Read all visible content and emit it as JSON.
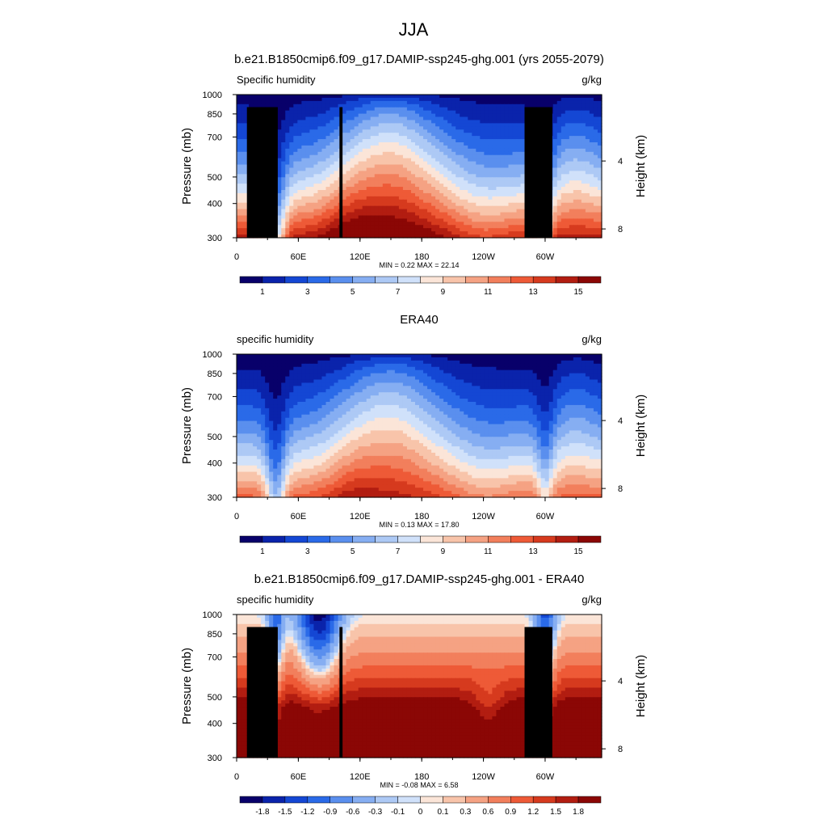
{
  "figure": {
    "title": "JJA"
  },
  "colors": {
    "abs_palette": [
      "#08006a",
      "#0a23ab",
      "#1447d4",
      "#2a6ae8",
      "#5a8fee",
      "#86aef2",
      "#adc9f5",
      "#d0e1fa",
      "#fbe5d8",
      "#f8c4aa",
      "#f5a283",
      "#f27f5c",
      "#ee5a37",
      "#d63a1e",
      "#b21d11",
      "#8b0705"
    ],
    "diff_palette": [
      "#08006a",
      "#0a23ab",
      "#1447d4",
      "#2a6ae8",
      "#5a8fee",
      "#86aef2",
      "#adc9f5",
      "#d0e1fa",
      "#fbe5d8",
      "#f8c4aa",
      "#f5a283",
      "#f27f5c",
      "#ee5a37",
      "#d63a1e",
      "#b21d11",
      "#8b0705"
    ],
    "topography": "#000000"
  },
  "chart_data": [
    {
      "type": "heatmap",
      "id": "model",
      "title": "b.e21.B1850cmip6.f09_g17.DAMIP-ssp245-ghg.001 (yrs 2055-2079)",
      "left_string": "Specific humidity",
      "right_string": "g/kg",
      "xlabel": "",
      "ylabel": "Pressure (mb)",
      "ylabel_right": "Height (km)",
      "x_ticklabels": [
        "0",
        "60E",
        "120E",
        "180",
        "120W",
        "60W"
      ],
      "x_tick_lon": [
        0,
        60,
        120,
        180,
        240,
        300
      ],
      "xlim": [
        0,
        355
      ],
      "y_ticklabels": [
        "300",
        "400",
        "500",
        "700",
        "850",
        "1000"
      ],
      "y_tick_values": [
        300,
        400,
        500,
        700,
        850,
        1000
      ],
      "ylim": [
        1000,
        300
      ],
      "y_scale": "log",
      "right_ticklabels": [
        "8",
        "4"
      ],
      "stats": "MIN =   0.22  MAX =  22.14",
      "min": 0.22,
      "max": 22.14,
      "colorbar_labels": [
        "1",
        "3",
        "5",
        "7",
        "9",
        "11",
        "13",
        "15"
      ],
      "levels": [
        1,
        2,
        3,
        4,
        5,
        6,
        7,
        8,
        9,
        10,
        11,
        12,
        13,
        14,
        15
      ],
      "topography": true
    },
    {
      "type": "heatmap",
      "id": "obs",
      "title": "ERA40",
      "left_string": "specific humidity",
      "right_string": "g/kg",
      "xlabel": "",
      "ylabel": "Pressure (mb)",
      "ylabel_right": "Height (km)",
      "x_ticklabels": [
        "0",
        "60E",
        "120E",
        "180",
        "120W",
        "60W"
      ],
      "x_tick_lon": [
        0,
        60,
        120,
        180,
        240,
        300
      ],
      "xlim": [
        0,
        355
      ],
      "y_ticklabels": [
        "300",
        "400",
        "500",
        "700",
        "850",
        "1000"
      ],
      "y_tick_values": [
        300,
        400,
        500,
        700,
        850,
        1000
      ],
      "ylim": [
        1000,
        300
      ],
      "y_scale": "log",
      "right_ticklabels": [
        "8",
        "4"
      ],
      "stats": "MIN =   0.13  MAX =  17.80",
      "min": 0.13,
      "max": 17.8,
      "colorbar_labels": [
        "1",
        "3",
        "5",
        "7",
        "9",
        "11",
        "13",
        "15"
      ],
      "levels": [
        1,
        2,
        3,
        4,
        5,
        6,
        7,
        8,
        9,
        10,
        11,
        12,
        13,
        14,
        15
      ],
      "topography": false
    },
    {
      "type": "heatmap",
      "id": "diff",
      "title": "b.e21.B1850cmip6.f09_g17.DAMIP-ssp245-ghg.001 - ERA40",
      "left_string": "specific humidity",
      "right_string": "g/kg",
      "xlabel": "",
      "ylabel": "Pressure (mb)",
      "ylabel_right": "Height (km)",
      "x_ticklabels": [
        "0",
        "60E",
        "120E",
        "180",
        "120W",
        "60W"
      ],
      "x_tick_lon": [
        0,
        60,
        120,
        180,
        240,
        300
      ],
      "xlim": [
        0,
        355
      ],
      "y_ticklabels": [
        "300",
        "400",
        "500",
        "700",
        "850",
        "1000"
      ],
      "y_tick_values": [
        300,
        400,
        500,
        700,
        850,
        1000
      ],
      "ylim": [
        1000,
        300
      ],
      "y_scale": "log",
      "right_ticklabels": [
        "8",
        "4"
      ],
      "stats": "MIN =  -0.08  MAX =   6.58",
      "min": -0.08,
      "max": 6.58,
      "colorbar_labels": [
        "-1.8",
        "-1.5",
        "-1.2",
        "-0.9",
        "-0.6",
        "-0.3",
        "-0.1",
        "0",
        "0.1",
        "0.3",
        "0.6",
        "0.9",
        "1.2",
        "1.5",
        "1.8"
      ],
      "levels": [
        -1.8,
        -1.5,
        -1.2,
        -0.9,
        -0.6,
        -0.3,
        -0.1,
        0,
        0.1,
        0.3,
        0.6,
        0.9,
        1.2,
        1.5,
        1.8
      ],
      "topography": true
    }
  ]
}
